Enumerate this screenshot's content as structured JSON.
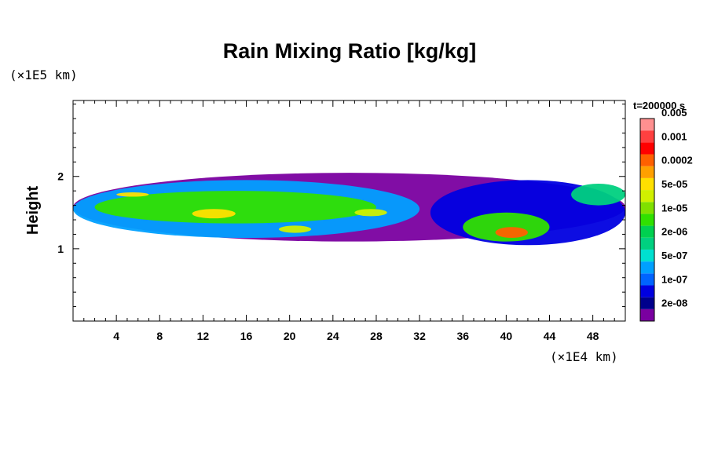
{
  "chart_data": {
    "type": "heatmap",
    "title": "Rain Mixing Ratio [kg/kg]",
    "ylabel": "Height",
    "xlabel": "",
    "x_units": "(×1E4 km)",
    "y_units": "(×1E5 km)",
    "time_label": "t=200000 s",
    "xlim": [
      0,
      51
    ],
    "ylim": [
      0,
      3.05
    ],
    "x_ticks": [
      4,
      8,
      12,
      16,
      20,
      24,
      28,
      32,
      36,
      40,
      44,
      48
    ],
    "y_ticks": [
      1,
      2
    ],
    "colorbar": {
      "colors": [
        "#7a00a0",
        "#00008c",
        "#0000e0",
        "#0064ff",
        "#00a0ff",
        "#00e0d0",
        "#00d080",
        "#00d050",
        "#30e000",
        "#80e000",
        "#d0f000",
        "#ffe000",
        "#ffa000",
        "#ff6000",
        "#ff0000",
        "#ff4040",
        "#ff9090"
      ],
      "labels": [
        "2e-08",
        "1e-07",
        "5e-07",
        "2e-06",
        "1e-05",
        "5e-05",
        "0.0002",
        "0.001",
        "0.005"
      ]
    },
    "field_regions": [
      {
        "level": 0,
        "x": [
          0.0,
          51.0
        ],
        "y": [
          1.1,
          2.05
        ]
      },
      {
        "level": 4,
        "x": [
          0.0,
          32.0
        ],
        "y": [
          1.15,
          1.95
        ]
      },
      {
        "level": 8,
        "x": [
          2.0,
          28.0
        ],
        "y": [
          1.35,
          1.8
        ]
      },
      {
        "level": 11,
        "x": [
          4.0,
          7.0
        ],
        "y": [
          1.72,
          1.78
        ]
      },
      {
        "level": 11,
        "x": [
          11.0,
          15.0
        ],
        "y": [
          1.42,
          1.55
        ]
      },
      {
        "level": 10,
        "x": [
          19.0,
          22.0
        ],
        "y": [
          1.22,
          1.32
        ]
      },
      {
        "level": 10,
        "x": [
          26.0,
          29.0
        ],
        "y": [
          1.45,
          1.55
        ]
      },
      {
        "level": 2,
        "x": [
          33.0,
          51.0
        ],
        "y": [
          1.05,
          1.95
        ]
      },
      {
        "level": 8,
        "x": [
          36.0,
          44.0
        ],
        "y": [
          1.1,
          1.5
        ]
      },
      {
        "level": 13,
        "x": [
          39.0,
          42.0
        ],
        "y": [
          1.15,
          1.3
        ]
      },
      {
        "level": 6,
        "x": [
          46.0,
          51.0
        ],
        "y": [
          1.6,
          1.9
        ]
      }
    ]
  }
}
